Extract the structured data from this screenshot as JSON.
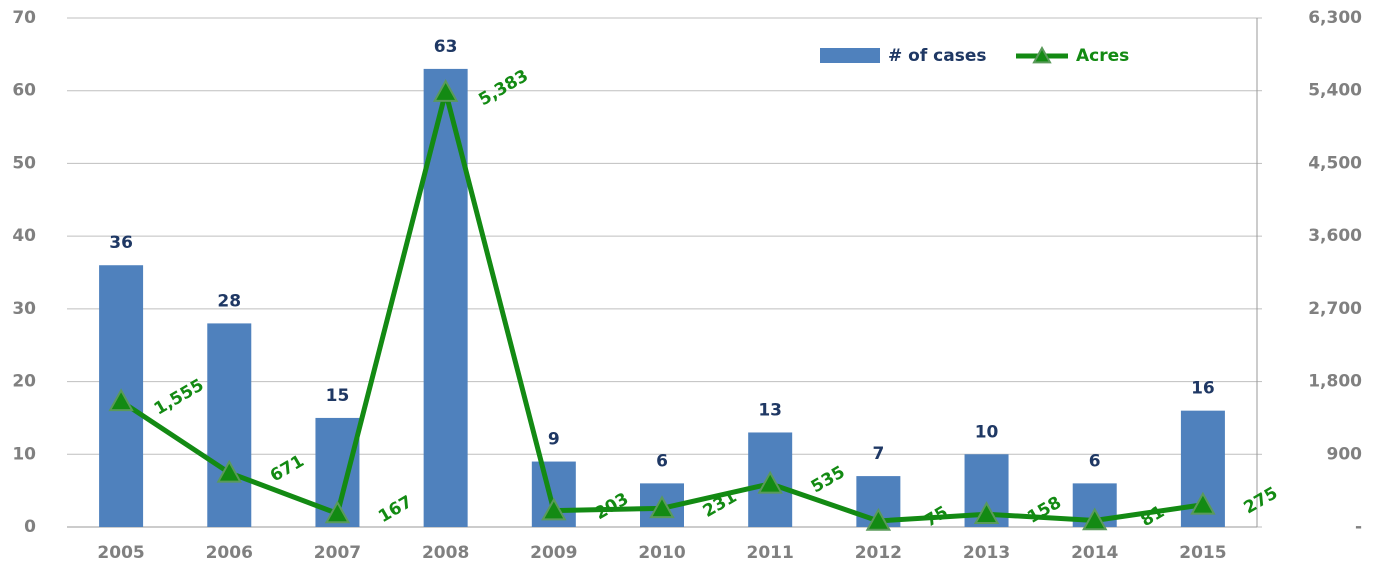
{
  "chart_data": {
    "type": "bar_line",
    "categories": [
      "2005",
      "2006",
      "2007",
      "2008",
      "2009",
      "2010",
      "2011",
      "2012",
      "2013",
      "2014",
      "2015"
    ],
    "series": [
      {
        "name": "# of cases",
        "color": "#4f81bd",
        "type": "bar",
        "values": [
          36,
          28,
          15,
          63,
          9,
          6,
          13,
          7,
          10,
          6,
          16
        ]
      },
      {
        "name": "Acres",
        "color": "#138a13",
        "type": "line",
        "axis": "y2",
        "values": [
          1555,
          671,
          167,
          5383,
          203,
          231,
          535,
          75,
          158,
          81,
          275
        ],
        "value_labels": [
          "1,555",
          "671",
          "167",
          "5,383",
          "203",
          "231",
          "535",
          "75",
          "158",
          "81",
          "275"
        ]
      }
    ],
    "ylim": [
      0,
      70
    ],
    "yticks": [
      0,
      10,
      20,
      30,
      40,
      50,
      60,
      70
    ],
    "y2lim": [
      0,
      6300
    ],
    "y2ticks": [
      {
        "value": 0,
        "label": "-"
      },
      900,
      {
        "value": 1800,
        "label": "1,800"
      },
      {
        "value": 2700,
        "label": "2,700"
      },
      {
        "value": 3600,
        "label": "3,600"
      },
      {
        "value": 4500,
        "label": "4,500"
      },
      {
        "value": 5400,
        "label": "5,400"
      },
      {
        "value": 6300,
        "label": "6,300"
      }
    ],
    "grid": true,
    "legend": "upper right"
  }
}
